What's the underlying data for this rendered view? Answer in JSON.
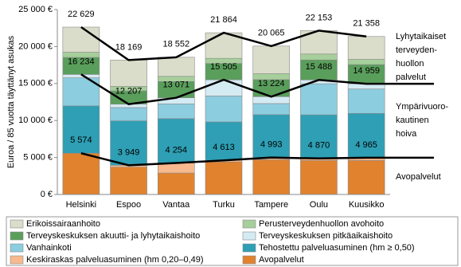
{
  "chart_data": {
    "type": "stacked_bar",
    "ylabel": "Euroa / 85 vuotta täyttänyt asukas",
    "categories": [
      "Helsinki",
      "Espoo",
      "Vantaa",
      "Turku",
      "Tampere",
      "Oulu",
      "Kuusikko"
    ],
    "series": [
      {
        "name": "Erikoissairaanhoito",
        "color": "#d9ddc9",
        "values": [
          3395,
          3562,
          2581,
          3459,
          3741,
          3165,
          3099
        ]
      },
      {
        "name": "Perusterveydenhuollon avohoito",
        "color": "#a6cf9b",
        "values": [
          700,
          600,
          700,
          700,
          800,
          800,
          700
        ]
      },
      {
        "name": "Terveyskeskuksen akuutti- ja lyhytaikaishoito",
        "color": "#5a9e5c",
        "values": [
          2300,
          1800,
          2200,
          2200,
          2300,
          2700,
          2600
        ]
      },
      {
        "name": "Terveyskeskuksen pitkäaikaishoito",
        "color": "#d5ebf3",
        "values": [
          460,
          458,
          817,
          2192,
          931,
          518,
          694
        ]
      },
      {
        "name": "Vanhainkoti",
        "color": "#8ccde0",
        "values": [
          3800,
          1800,
          2000,
          3500,
          1500,
          4200,
          3300
        ]
      },
      {
        "name": "Tehostettu palveluasuminen (hm ≥ 0,50)",
        "color": "#2e9fb4",
        "values": [
          6400,
          6000,
          6000,
          5200,
          5800,
          5900,
          6000
        ]
      },
      {
        "name": "Keskiraskas palveluasuminen (hm 0,20–0,49)",
        "color": "#f7b98d",
        "values": [
          0,
          249,
          1354,
          213,
          293,
          270,
          365
        ]
      },
      {
        "name": "Avopalvelut",
        "color": "#e1822f",
        "values": [
          5574,
          3700,
          2900,
          4400,
          4700,
          4600,
          4600
        ]
      }
    ],
    "reference_lines": [
      {
        "values": [
          22629,
          18169,
          18552,
          21864,
          20065,
          22153,
          21358
        ],
        "value_labels": [
          "22 629",
          "18 169",
          "18 552",
          "21 864",
          "20 065",
          "22 153",
          "21 358"
        ],
        "annotation": [
          "Lyhytaikaiset",
          "terveyden-",
          "huollon",
          "palvelut"
        ]
      },
      {
        "values": [
          16234,
          12207,
          13071,
          15505,
          13224,
          15488,
          14959
        ],
        "value_labels": [
          "16 234",
          "12 207",
          "13 071",
          "15 505",
          "13 224",
          "15 488",
          "14 959"
        ],
        "annotation": [
          "Ympärivuoro-",
          "kautinen",
          "hoiva"
        ]
      },
      {
        "values": [
          5574,
          3949,
          4254,
          4613,
          4993,
          4870,
          4965
        ],
        "value_labels": [
          "5 574",
          "3 949",
          "4 254",
          "4 613",
          "4 993",
          "4 870",
          "4 965"
        ],
        "annotation": [
          "Avopalvelut"
        ]
      }
    ],
    "ylim": [
      0,
      25000
    ],
    "yticks": [
      {
        "value": 0,
        "label": "0 €"
      },
      {
        "value": 5000,
        "label": "5 000 €"
      },
      {
        "value": 10000,
        "label": "10 000 €"
      },
      {
        "value": 15000,
        "label": "15 000 €"
      },
      {
        "value": 20000,
        "label": "20 000 €"
      },
      {
        "value": 25000,
        "label": "25 000 €"
      }
    ],
    "grid": false
  }
}
